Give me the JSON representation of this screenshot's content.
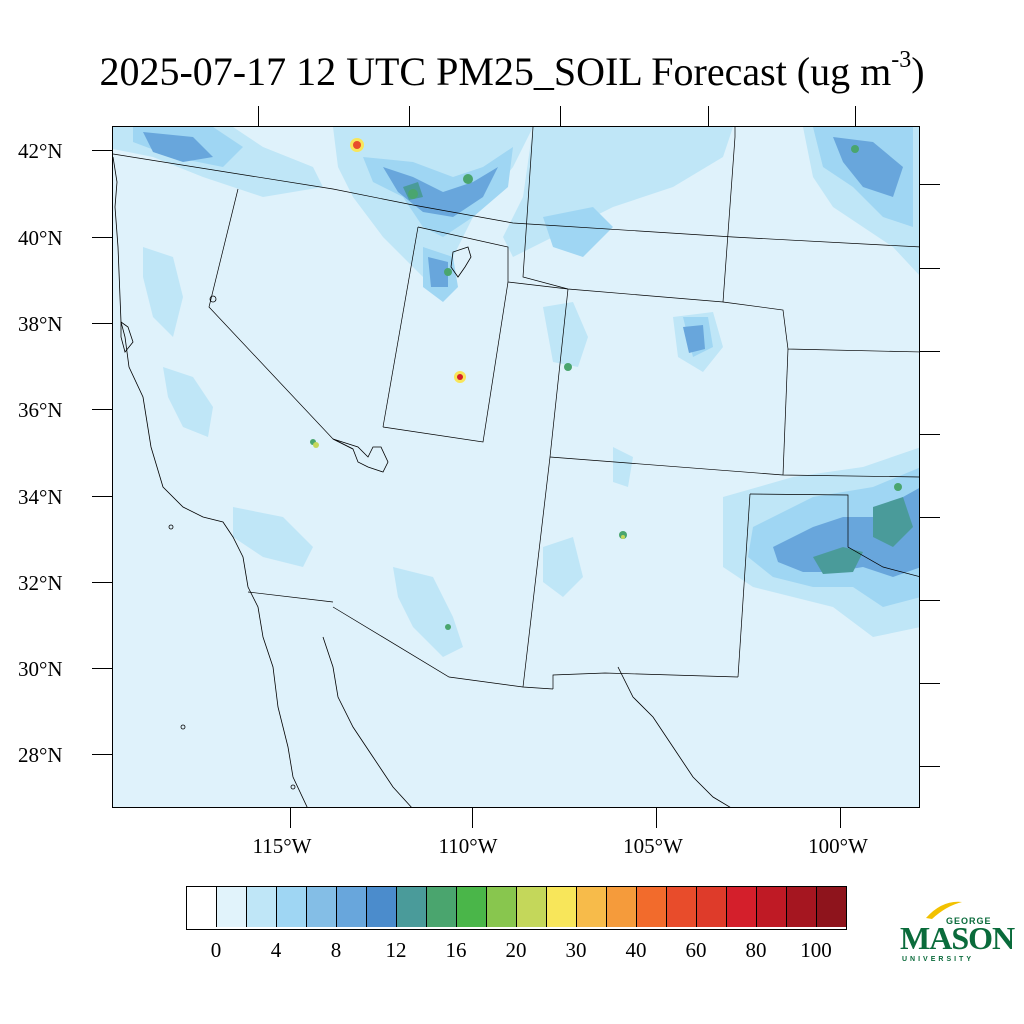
{
  "title": {
    "text": "2025-07-17 12 UTC PM25_SOIL Forecast (ug m",
    "superscript": "-3",
    "closing": ")"
  },
  "map": {
    "background_color": "#dff2fb",
    "lat_labels": [
      "42°N",
      "40°N",
      "38°N",
      "36°N",
      "34°N",
      "32°N",
      "30°N",
      "28°N"
    ],
    "lon_labels": [
      "115°W",
      "110°W",
      "105°W",
      "100°W"
    ]
  },
  "colorbar": {
    "colors": [
      "#ffffff",
      "#e1f3fb",
      "#bfe6f7",
      "#9fd6f3",
      "#84bee6",
      "#68a6dc",
      "#4b8ccc",
      "#4a9b9a",
      "#4aa56e",
      "#4ab649",
      "#88c64e",
      "#c4d75a",
      "#f8e65a",
      "#f7bb4a",
      "#f59b3b",
      "#f26b2c",
      "#e84c2b",
      "#de3b2a",
      "#d41f2b",
      "#bf1a25",
      "#a51620",
      "#8e141c"
    ],
    "labels": [
      "0",
      "4",
      "8",
      "12",
      "16",
      "20",
      "30",
      "40",
      "60",
      "80",
      "100"
    ]
  },
  "logo": {
    "name": "MASON",
    "top": "GEORGE",
    "bottom": "UNIVERSITY",
    "green": "#0a6b3b",
    "gold": "#f2c100"
  }
}
